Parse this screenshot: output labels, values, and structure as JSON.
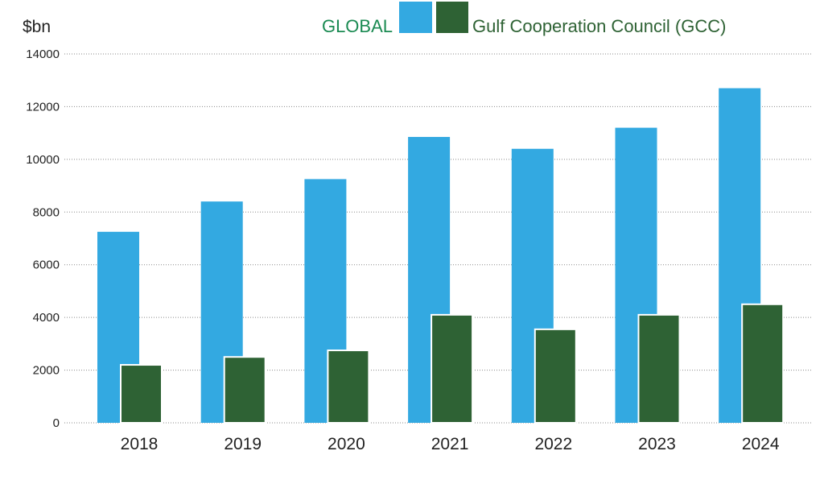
{
  "chart_data": {
    "type": "bar",
    "title": "",
    "xlabel": "",
    "ylabel": "$bn",
    "ylim": [
      0,
      14000
    ],
    "yticks": [
      "0",
      "2000",
      "4000",
      "6000",
      "8000",
      "10000",
      "12000",
      "14000"
    ],
    "grid": true,
    "legend_position": "top",
    "categories": [
      "2018",
      "2019",
      "2020",
      "2021",
      "2022",
      "2023",
      "2024"
    ],
    "series": [
      {
        "name": "GLOBAL",
        "color": "#33a9e1",
        "text_color": "#1a8a52",
        "values": [
          7250,
          8400,
          9250,
          10850,
          10400,
          11200,
          12700
        ]
      },
      {
        "name": "Gulf Cooperation Council (GCC)",
        "color": "#2e6234",
        "text_color": "#2e6234",
        "values": [
          2200,
          2500,
          2750,
          4100,
          3550,
          4100,
          4500
        ]
      }
    ]
  }
}
